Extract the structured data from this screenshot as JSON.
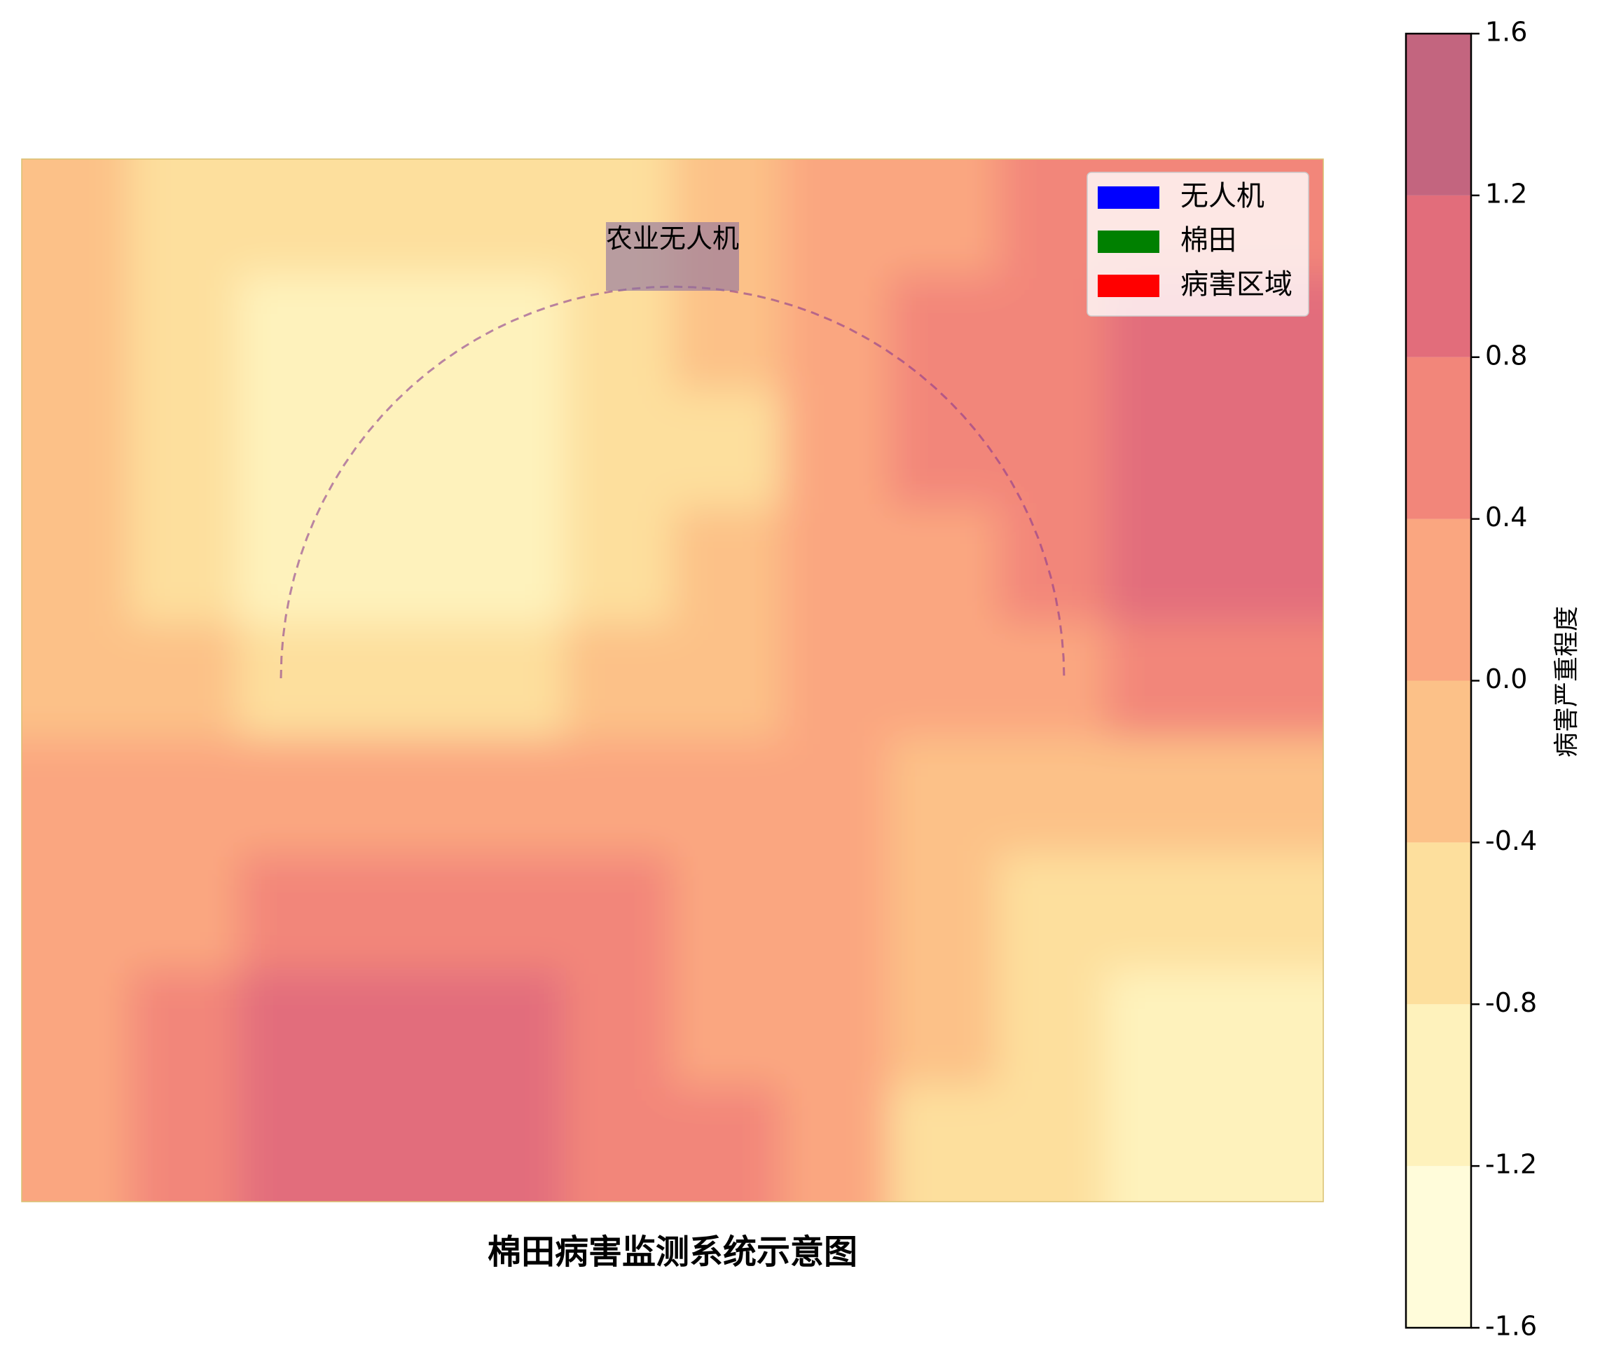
{
  "chart_data": {
    "type": "contourf",
    "title": "棉田病害监测系统示意图",
    "annotation": "农业无人机",
    "colorbar_label": "病害严重程度",
    "levels": [
      -1.6,
      -1.2,
      -0.8,
      -0.4,
      {
        "value": 0,
        "label": "0.0"
      },
      0.4,
      0.8,
      1.2,
      1.6
    ],
    "colors": [
      "#fffbd3",
      "#fef0b0",
      "#fdd98c",
      "#fcb673",
      "#f9976a",
      "#f07163",
      "#dd5464",
      "#b84a68"
    ],
    "z": [
      [
        -0.23,
        -0.47,
        -0.64,
        -0.71,
        -0.66,
        -0.51,
        -0.28,
        0,
        0.28,
        0.51,
        0.66,
        0.71
      ],
      [
        -0.33,
        -0.68,
        -0.92,
        -1.02,
        -0.96,
        -0.74,
        -0.4,
        0,
        0.4,
        0.74,
        0.96,
        1.02
      ],
      [
        -0.35,
        -0.72,
        -0.99,
        -1.09,
        -1.02,
        -0.79,
        -0.43,
        0,
        0.43,
        0.79,
        1.02,
        1.09
      ],
      [
        -0.28,
        -0.59,
        -0.81,
        -0.89,
        -0.83,
        -0.64,
        -0.35,
        0,
        0.35,
        0.64,
        0.83,
        0.89
      ],
      [
        -0.15,
        -0.32,
        -0.43,
        -0.48,
        -0.45,
        -0.34,
        -0.19,
        0,
        0.19,
        0.34,
        0.45,
        0.48
      ],
      [
        0.02,
        0.04,
        0.05,
        0.06,
        0.05,
        0.04,
        0.02,
        0,
        -0.02,
        -0.04,
        -0.05,
        -0.06
      ],
      [
        0.18,
        0.38,
        0.52,
        0.57,
        0.54,
        0.41,
        0.22,
        0,
        -0.22,
        -0.41,
        -0.54,
        -0.57
      ],
      [
        0.3,
        0.63,
        0.86,
        0.95,
        0.89,
        0.69,
        0.37,
        0,
        -0.37,
        -0.69,
        -0.89,
        -0.95
      ],
      [
        0.35,
        0.73,
        0.99,
        1.1,
        1.03,
        0.79,
        0.43,
        0,
        -0.43,
        -0.79,
        -1.03,
        -1.1
      ]
    ],
    "legend": [
      {
        "name": "无人机",
        "color": "#0000ff"
      },
      {
        "name": "棉田",
        "color": "#008000"
      },
      {
        "name": "病害区域",
        "color": "#ff0000"
      }
    ],
    "legend_position": "upper right"
  }
}
